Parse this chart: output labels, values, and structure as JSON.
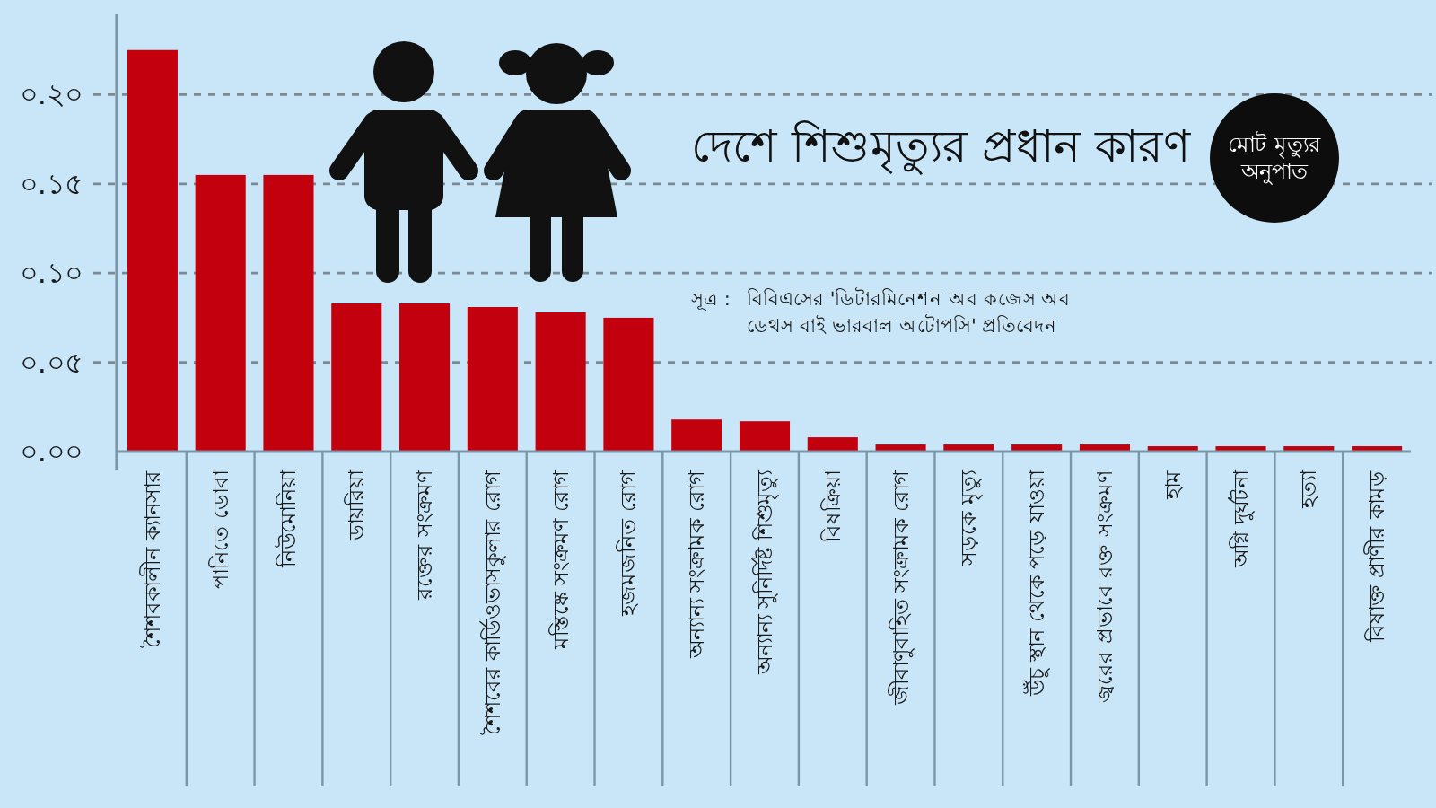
{
  "chart_data": {
    "type": "bar",
    "title": "দেশে শিশুমৃত্যুর প্রধান কারণ",
    "ylabel": "মোট মৃত্যুর অনুপাত",
    "annotations": [
      "সূত্র :",
      "বিবিএসের 'ডিটারমিনেশন অব কজেস অব ডেথস বাই ভারবাল অটোপসি' প্রতিবেদন"
    ],
    "categories": [
      "শৈশবকালীন ক্যানসার",
      "পানিতে ডোবা",
      "নিউমোনিয়া",
      "ডায়রিয়া",
      "রক্তের সংক্রমণ",
      "শৈশবের কার্ডিওভাসকুলার রোগ",
      "মস্তিষ্কে সংক্রমণ রোগ",
      "হজমজনিত রোগ",
      "অন্যান্য সংক্রামক রোগ",
      "অন্যান্য সুনির্দিষ্ট শিশুমৃত্যু",
      "বিষক্রিয়া",
      "জীবাণুবাহিত সংক্রামক রোগ",
      "সড়কে মৃত্যু",
      "উঁচু স্থান থেকে পড়ে যাওয়া",
      "জ্বরের প্রভাবে রক্ত সংক্রমণ",
      "হাম",
      "অগ্নি দুর্ঘটনা",
      "হত্যা",
      "বিষাক্ত প্রাণীর কামড়"
    ],
    "values": [
      0.225,
      0.155,
      0.155,
      0.083,
      0.083,
      0.081,
      0.078,
      0.075,
      0.018,
      0.017,
      0.008,
      0.004,
      0.004,
      0.004,
      0.004,
      0.003,
      0.003,
      0.003,
      0.003
    ],
    "color": "#c2000e",
    "ylim": [
      0,
      0.245
    ],
    "yticks": [
      {
        "value": 0,
        "label": "০.০০"
      },
      {
        "value": 0.05,
        "label": "০.০৫"
      },
      {
        "value": 0.1,
        "label": "০.১০"
      },
      {
        "value": 0.15,
        "label": "০.১৫"
      },
      {
        "value": 0.2,
        "label": "০.২০"
      }
    ],
    "grid": "y"
  }
}
